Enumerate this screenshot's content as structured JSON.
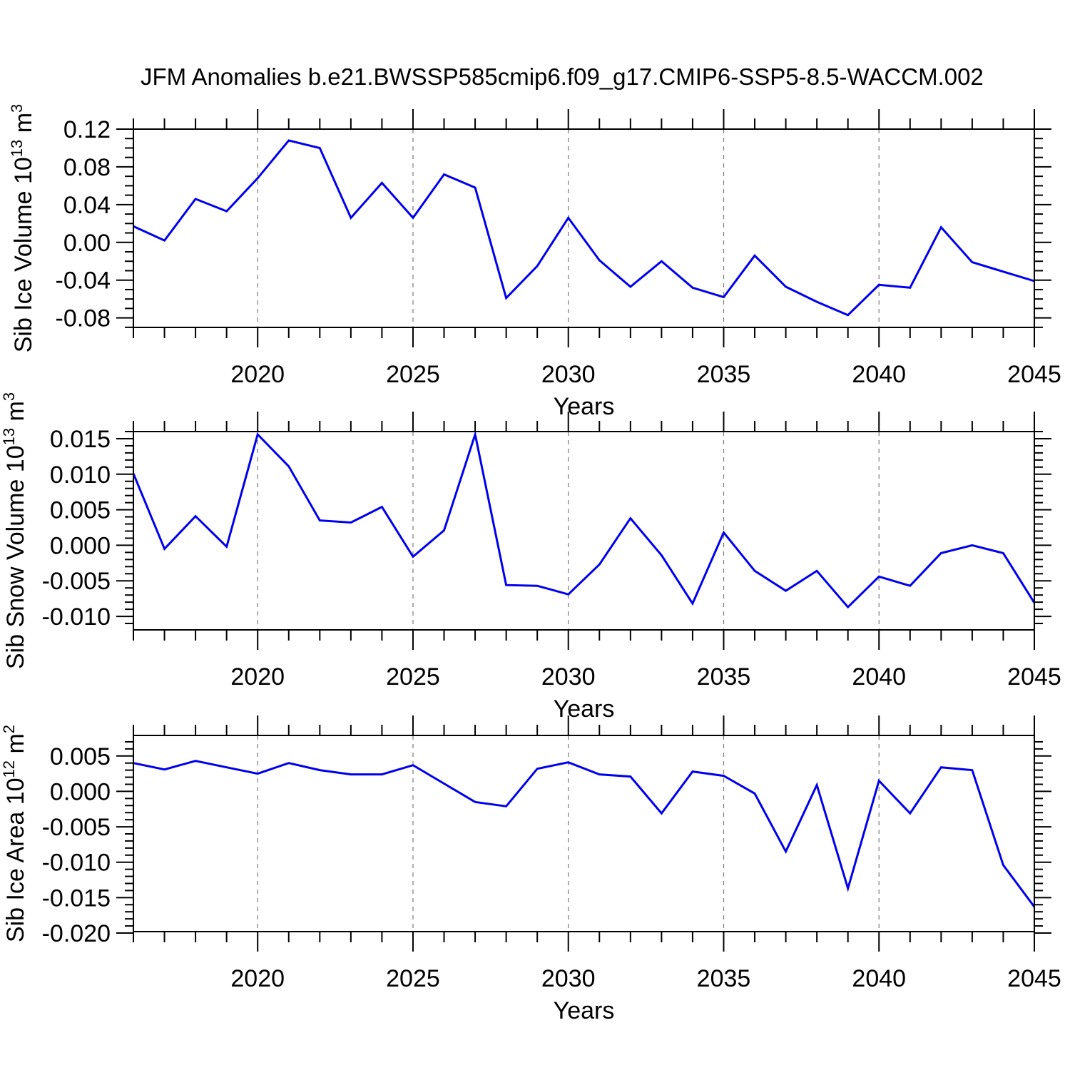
{
  "title": "JFM Anomalies b.e21.BWSSP585cmip6.f09_g17.CMIP6-SSP5-8.5-WACCM.002",
  "line_color": "#0000ee",
  "grid_color": "#7a7a7a",
  "axis_color": "#000000",
  "chart_data": [
    {
      "type": "line",
      "name": "sib-ice-volume",
      "ylabel_parts": [
        {
          "t": "Sib Ice Volume 10"
        },
        {
          "t": "13",
          "sup": true
        },
        {
          "t": " m"
        },
        {
          "t": "3",
          "sup": true
        }
      ],
      "xlabel": "Years",
      "x": [
        2016,
        2017,
        2018,
        2019,
        2020,
        2021,
        2022,
        2023,
        2024,
        2025,
        2026,
        2027,
        2028,
        2029,
        2030,
        2031,
        2032,
        2033,
        2034,
        2035,
        2036,
        2037,
        2038,
        2039,
        2040,
        2041,
        2042,
        2043,
        2044,
        2045
      ],
      "values": [
        0.017,
        0.002,
        0.046,
        0.033,
        0.068,
        0.108,
        0.1,
        0.026,
        0.063,
        0.026,
        0.072,
        0.058,
        -0.059,
        -0.025,
        0.026,
        -0.019,
        -0.047,
        -0.02,
        -0.048,
        -0.058,
        -0.014,
        -0.047,
        -0.063,
        -0.077,
        -0.045,
        -0.048,
        0.016,
        -0.021,
        -0.031,
        -0.041
      ],
      "xlim": [
        2016,
        2045
      ],
      "ylim": [
        -0.0901,
        0.12
      ],
      "yticks": [
        {
          "v": 0.12,
          "label": "0.12"
        },
        {
          "v": 0.08,
          "label": "0.08"
        },
        {
          "v": 0.04,
          "label": "0.04"
        },
        {
          "v": 0.0,
          "label": "0.00"
        },
        {
          "v": -0.04,
          "label": "-0.04"
        },
        {
          "v": -0.08,
          "label": "-0.08"
        }
      ],
      "y_minor_step": 0.01,
      "xticks_major": [
        2020,
        2025,
        2030,
        2035,
        2040,
        2045
      ],
      "xtick_labels": [
        "2020",
        "2025",
        "2030",
        "2035",
        "2040",
        "2045"
      ],
      "x_minor_step": 1,
      "grid_years": [
        2020,
        2025,
        2030,
        2035,
        2040
      ],
      "grid": true
    },
    {
      "type": "line",
      "name": "sib-snow-volume",
      "ylabel_parts": [
        {
          "t": "Sib Snow Volume 10"
        },
        {
          "t": "13",
          "sup": true
        },
        {
          "t": " m"
        },
        {
          "t": "3",
          "sup": true
        }
      ],
      "xlabel": "Years",
      "x": [
        2016,
        2017,
        2018,
        2019,
        2020,
        2021,
        2022,
        2023,
        2024,
        2025,
        2026,
        2027,
        2028,
        2029,
        2030,
        2031,
        2032,
        2033,
        2034,
        2035,
        2036,
        2037,
        2038,
        2039,
        2040,
        2041,
        2042,
        2043,
        2044,
        2045
      ],
      "values": [
        0.0101,
        -0.0005,
        0.0041,
        -0.0002,
        0.0156,
        0.0111,
        0.0035,
        0.0032,
        0.0054,
        -0.0016,
        0.0021,
        0.0156,
        -0.0056,
        -0.0057,
        -0.0069,
        -0.0027,
        0.0038,
        -0.0014,
        -0.0082,
        0.0018,
        -0.0036,
        -0.0064,
        -0.0036,
        -0.0087,
        -0.0044,
        -0.0057,
        -0.0011,
        0.0,
        -0.0011,
        -0.0081
      ],
      "xlim": [
        2016,
        2045
      ],
      "ylim": [
        -0.0119,
        0.016
      ],
      "yticks": [
        {
          "v": 0.015,
          "label": "0.015"
        },
        {
          "v": 0.01,
          "label": "0.010"
        },
        {
          "v": 0.005,
          "label": "0.005"
        },
        {
          "v": 0.0,
          "label": "0.000"
        },
        {
          "v": -0.005,
          "label": "-0.005"
        },
        {
          "v": -0.01,
          "label": "-0.010"
        }
      ],
      "y_minor_step": 0.001,
      "xticks_major": [
        2020,
        2025,
        2030,
        2035,
        2040,
        2045
      ],
      "xtick_labels": [
        "2020",
        "2025",
        "2030",
        "2035",
        "2040",
        "2045"
      ],
      "x_minor_step": 1,
      "grid_years": [
        2020,
        2025,
        2030,
        2035,
        2040
      ],
      "grid": true
    },
    {
      "type": "line",
      "name": "sib-ice-area",
      "ylabel_parts": [
        {
          "t": "Sib Ice Area 10"
        },
        {
          "t": "12",
          "sup": true
        },
        {
          "t": " m"
        },
        {
          "t": "2",
          "sup": true
        }
      ],
      "xlabel": "Years",
      "x": [
        2016,
        2017,
        2018,
        2019,
        2020,
        2021,
        2022,
        2023,
        2024,
        2025,
        2026,
        2027,
        2028,
        2029,
        2030,
        2031,
        2032,
        2033,
        2034,
        2035,
        2036,
        2037,
        2038,
        2039,
        2040,
        2041,
        2042,
        2043,
        2044,
        2045
      ],
      "values": [
        0.004,
        0.0031,
        0.0043,
        0.0034,
        0.0025,
        0.004,
        0.003,
        0.0024,
        0.0024,
        0.0037,
        0.0011,
        -0.0015,
        -0.0021,
        0.0032,
        0.0041,
        0.0024,
        0.0021,
        -0.0031,
        0.0028,
        0.0022,
        -0.0003,
        -0.0085,
        0.0009,
        -0.0137,
        0.0015,
        -0.0031,
        0.0034,
        0.003,
        -0.0104,
        -0.0163
      ],
      "xlim": [
        2016,
        2045
      ],
      "ylim": [
        -0.0198,
        0.0079
      ],
      "yticks": [
        {
          "v": 0.005,
          "label": "0.005"
        },
        {
          "v": 0.0,
          "label": "0.000"
        },
        {
          "v": -0.005,
          "label": "-0.005"
        },
        {
          "v": -0.01,
          "label": "-0.010"
        },
        {
          "v": -0.015,
          "label": "-0.015"
        },
        {
          "v": -0.02,
          "label": "-0.020"
        }
      ],
      "y_minor_step": 0.001,
      "xticks_major": [
        2020,
        2025,
        2030,
        2035,
        2040,
        2045
      ],
      "xtick_labels": [
        "2020",
        "2025",
        "2030",
        "2035",
        "2040",
        "2045"
      ],
      "x_minor_step": 1,
      "grid_years": [
        2020,
        2025,
        2030,
        2035,
        2040
      ],
      "grid": true
    }
  ]
}
